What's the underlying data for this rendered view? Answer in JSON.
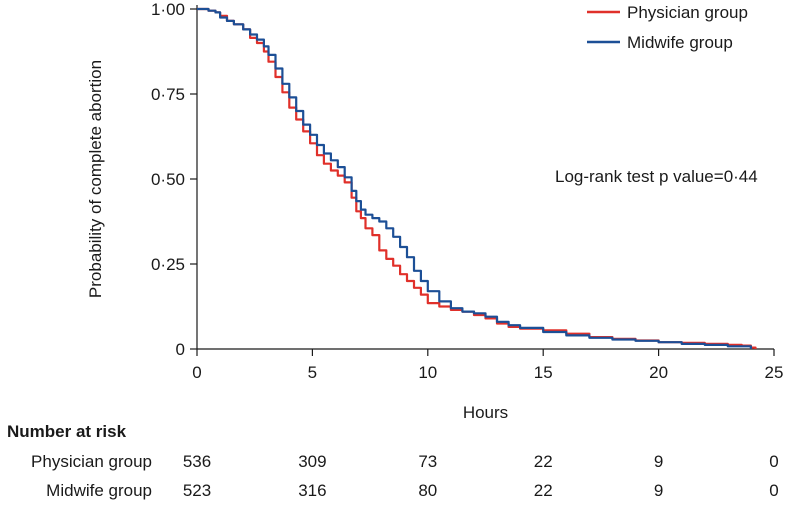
{
  "chart_data": {
    "type": "line",
    "ylabel": "Probability of complete abortion",
    "xlabel": "Hours",
    "xlim": [
      0,
      25
    ],
    "ylim": [
      0,
      1
    ],
    "x_ticks": [
      0,
      5,
      10,
      15,
      20,
      25
    ],
    "x_tick_labels": [
      "0",
      "5",
      "10",
      "15",
      "20",
      "25"
    ],
    "y_ticks": [
      0,
      0.25,
      0.5,
      0.75,
      1.0
    ],
    "y_tick_labels": [
      "0",
      "0·25",
      "0·50",
      "0·75",
      "1·00"
    ],
    "grid": false,
    "legend_position": "top-right",
    "annotation": "Log-rank test p value=0·44",
    "series": [
      {
        "name": "Physician group",
        "color": "#e0302a",
        "points": [
          [
            0,
            1.0
          ],
          [
            0.3,
            1.0
          ],
          [
            0.5,
            0.995
          ],
          [
            0.8,
            0.99
          ],
          [
            1.0,
            0.98
          ],
          [
            1.3,
            0.965
          ],
          [
            1.6,
            0.955
          ],
          [
            2.0,
            0.94
          ],
          [
            2.3,
            0.915
          ],
          [
            2.6,
            0.9
          ],
          [
            2.9,
            0.875
          ],
          [
            3.1,
            0.845
          ],
          [
            3.4,
            0.8
          ],
          [
            3.7,
            0.755
          ],
          [
            4.0,
            0.71
          ],
          [
            4.3,
            0.675
          ],
          [
            4.6,
            0.64
          ],
          [
            4.9,
            0.605
          ],
          [
            5.2,
            0.57
          ],
          [
            5.5,
            0.545
          ],
          [
            5.8,
            0.525
          ],
          [
            6.1,
            0.51
          ],
          [
            6.4,
            0.49
          ],
          [
            6.7,
            0.445
          ],
          [
            6.9,
            0.405
          ],
          [
            7.1,
            0.385
          ],
          [
            7.3,
            0.355
          ],
          [
            7.6,
            0.335
          ],
          [
            7.9,
            0.29
          ],
          [
            8.2,
            0.265
          ],
          [
            8.5,
            0.245
          ],
          [
            8.8,
            0.22
          ],
          [
            9.1,
            0.2
          ],
          [
            9.4,
            0.18
          ],
          [
            9.7,
            0.16
          ],
          [
            10.0,
            0.135
          ],
          [
            10.5,
            0.125
          ],
          [
            11.0,
            0.115
          ],
          [
            11.5,
            0.11
          ],
          [
            12.0,
            0.1
          ],
          [
            12.5,
            0.09
          ],
          [
            13.0,
            0.075
          ],
          [
            13.5,
            0.065
          ],
          [
            14.0,
            0.06
          ],
          [
            15.0,
            0.055
          ],
          [
            16.0,
            0.045
          ],
          [
            17.0,
            0.035
          ],
          [
            18.0,
            0.03
          ],
          [
            19.0,
            0.025
          ],
          [
            20.0,
            0.02
          ],
          [
            21.0,
            0.018
          ],
          [
            22.0,
            0.015
          ],
          [
            23.0,
            0.012
          ],
          [
            23.6,
            0.01
          ],
          [
            24.0,
            0.004
          ],
          [
            24.2,
            0.0
          ]
        ]
      },
      {
        "name": "Midwife group",
        "color": "#1c4f96",
        "points": [
          [
            0,
            1.0
          ],
          [
            0.3,
            1.0
          ],
          [
            0.5,
            0.995
          ],
          [
            0.8,
            0.99
          ],
          [
            1.0,
            0.975
          ],
          [
            1.3,
            0.965
          ],
          [
            1.6,
            0.955
          ],
          [
            2.0,
            0.94
          ],
          [
            2.3,
            0.925
          ],
          [
            2.6,
            0.91
          ],
          [
            2.9,
            0.89
          ],
          [
            3.1,
            0.865
          ],
          [
            3.4,
            0.825
          ],
          [
            3.7,
            0.78
          ],
          [
            4.0,
            0.74
          ],
          [
            4.3,
            0.7
          ],
          [
            4.6,
            0.66
          ],
          [
            4.9,
            0.63
          ],
          [
            5.2,
            0.6
          ],
          [
            5.5,
            0.575
          ],
          [
            5.8,
            0.555
          ],
          [
            6.1,
            0.535
          ],
          [
            6.4,
            0.505
          ],
          [
            6.7,
            0.465
          ],
          [
            6.9,
            0.435
          ],
          [
            7.1,
            0.41
          ],
          [
            7.3,
            0.395
          ],
          [
            7.6,
            0.385
          ],
          [
            7.9,
            0.375
          ],
          [
            8.2,
            0.355
          ],
          [
            8.5,
            0.33
          ],
          [
            8.8,
            0.3
          ],
          [
            9.1,
            0.27
          ],
          [
            9.4,
            0.23
          ],
          [
            9.7,
            0.2
          ],
          [
            10.0,
            0.17
          ],
          [
            10.5,
            0.14
          ],
          [
            11.0,
            0.12
          ],
          [
            11.5,
            0.11
          ],
          [
            12.0,
            0.105
          ],
          [
            12.5,
            0.095
          ],
          [
            13.0,
            0.08
          ],
          [
            13.5,
            0.07
          ],
          [
            14.0,
            0.062
          ],
          [
            15.0,
            0.05
          ],
          [
            16.0,
            0.04
          ],
          [
            17.0,
            0.033
          ],
          [
            18.0,
            0.028
          ],
          [
            19.0,
            0.024
          ],
          [
            20.0,
            0.02
          ],
          [
            21.0,
            0.015
          ],
          [
            22.0,
            0.012
          ],
          [
            23.0,
            0.008
          ],
          [
            24.0,
            0.0
          ]
        ]
      }
    ],
    "risk_table": {
      "title": "Number at risk",
      "time_points": [
        0,
        5,
        10,
        15,
        20,
        25
      ],
      "rows": [
        {
          "label": "Physician group",
          "values": [
            "536",
            "309",
            "73",
            "22",
            "9",
            "0"
          ]
        },
        {
          "label": "Midwife group",
          "values": [
            "523",
            "316",
            "80",
            "22",
            "9",
            "0"
          ]
        }
      ]
    }
  }
}
